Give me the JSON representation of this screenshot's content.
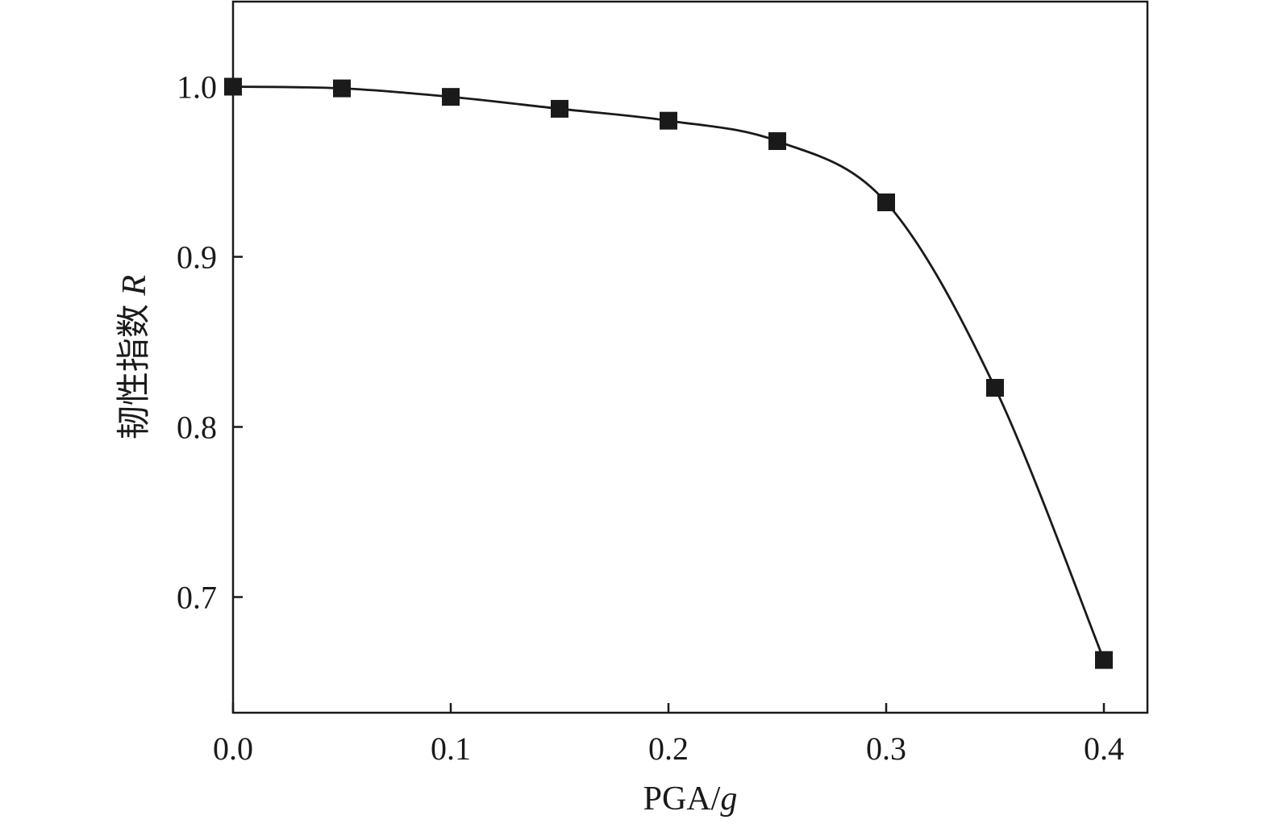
{
  "chart_data": {
    "type": "line",
    "title": "",
    "xlabel": "PGA/",
    "xlabel_italic": "g",
    "ylabel": "韧性指数 ",
    "ylabel_italic": "R",
    "xlim": [
      0.0,
      0.42
    ],
    "ylim": [
      0.632,
      1.05
    ],
    "x_ticks": [
      0.0,
      0.1,
      0.2,
      0.3,
      0.4
    ],
    "x_tick_labels": [
      "0.0",
      "0.1",
      "0.2",
      "0.3",
      "0.4"
    ],
    "y_ticks": [
      0.7,
      0.8,
      0.9,
      1.0
    ],
    "y_tick_labels": [
      "0.7",
      "0.8",
      "0.9",
      "1.0"
    ],
    "grid": false,
    "legend": "none",
    "marker": "square",
    "color": "#1a1a1a",
    "series": [
      {
        "x": [
          0.0,
          0.05,
          0.1,
          0.15,
          0.2,
          0.25,
          0.3,
          0.35,
          0.4
        ],
        "y": [
          1.0,
          0.999,
          0.994,
          0.987,
          0.98,
          0.968,
          0.932,
          0.823,
          0.663
        ]
      }
    ]
  }
}
